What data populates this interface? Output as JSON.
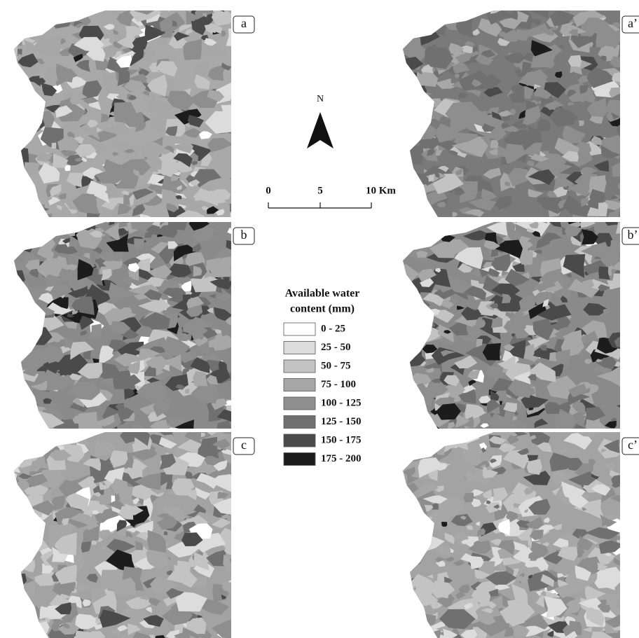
{
  "panels": [
    {
      "label": "a"
    },
    {
      "label": "a’"
    },
    {
      "label": "b"
    },
    {
      "label": "b’"
    },
    {
      "label": "c"
    },
    {
      "label": "c’"
    }
  ],
  "north": "N",
  "scale": {
    "ticks": [
      "0",
      "5",
      "10 Km"
    ]
  },
  "legend": {
    "title": [
      "Available water",
      "content (mm)"
    ],
    "items": [
      {
        "label": "0 - 25",
        "color": "#ffffff"
      },
      {
        "label": "25 - 50",
        "color": "#dcdcdc"
      },
      {
        "label": "50 - 75",
        "color": "#c3c3c3"
      },
      {
        "label": "75 - 100",
        "color": "#a7a7a7"
      },
      {
        "label": "100 - 125",
        "color": "#8e8e8e"
      },
      {
        "label": "125 - 150",
        "color": "#707070"
      },
      {
        "label": "150 - 175",
        "color": "#4a4a4a"
      },
      {
        "label": "175 - 200",
        "color": "#1c1c1c"
      }
    ]
  }
}
